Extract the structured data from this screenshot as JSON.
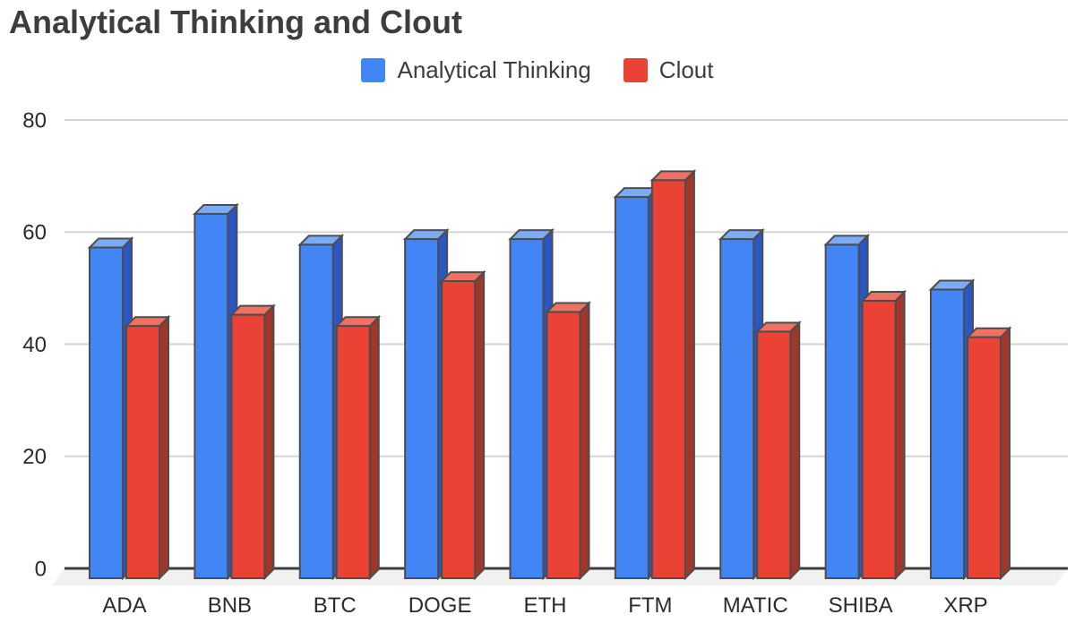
{
  "chart_data": {
    "type": "bar",
    "style": "3d-column",
    "title": "Analytical Thinking and Clout",
    "categories": [
      "ADA",
      "BNB",
      "BTC",
      "DOGE",
      "ETH",
      "FTM",
      "MATIC",
      "SHIBA",
      "XRP"
    ],
    "series": [
      {
        "name": "Analytical Thinking",
        "color": "#4285F4",
        "color_top": "#7BAAF7",
        "color_side": "#2A56C6",
        "values": [
          59,
          65,
          59.5,
          60.5,
          60.5,
          68,
          60.5,
          59.5,
          51.5
        ]
      },
      {
        "name": "Clout",
        "color": "#EA4335",
        "color_top": "#EE7164",
        "color_side": "#A0372A",
        "values": [
          45,
          47,
          45,
          53,
          47.5,
          71,
          44,
          49.5,
          43
        ]
      }
    ],
    "xlabel": "",
    "ylabel": "",
    "ylim": [
      0,
      80
    ],
    "yticks": [
      0,
      20,
      40,
      60,
      80
    ],
    "gridlines": true,
    "legend_position": "top"
  },
  "colors": {
    "gridline": "#d5d5d5",
    "axis_line": "#3d3d3d",
    "bar_outline": "#4d4d4d",
    "floor": "#f1f1f1",
    "tick_text": "#2b2b2b",
    "title_text": "#3d3d3d"
  }
}
